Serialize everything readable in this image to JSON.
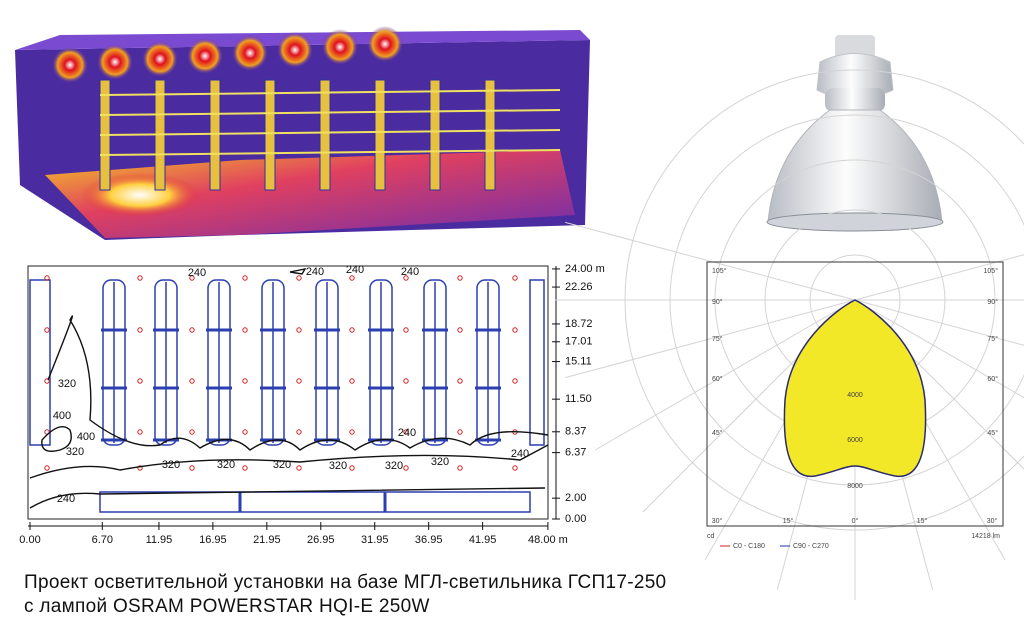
{
  "plan": {
    "x_ticks": [
      "0.00",
      "6.70",
      "11.95",
      "16.95",
      "21.95",
      "26.95",
      "31.95",
      "36.95",
      "41.95",
      "48.00 m"
    ],
    "y_ticks": [
      "24.00 m",
      "22.26",
      "18.72",
      "17.01",
      "15.11",
      "11.50",
      "8.37",
      "6.37",
      "2.00",
      "0.00"
    ],
    "contour_labels": [
      "240",
      "240",
      "240",
      "240",
      "320",
      "400",
      "400",
      "320",
      "320",
      "320",
      "320",
      "320",
      "320",
      "320",
      "240",
      "240",
      "240"
    ]
  },
  "polar": {
    "angle_labels": [
      "105°",
      "90°",
      "75°",
      "60°",
      "45°",
      "30°"
    ],
    "bottom_labels": [
      "30°",
      "15°",
      "0°",
      "15°",
      "30°"
    ],
    "radial_labels": [
      "4000",
      "6000",
      "8000"
    ],
    "unit": "cd",
    "legend": [
      "C0 - C180",
      "C90 - C270"
    ],
    "flux": "14218 lm"
  },
  "caption": {
    "line1": "Проект осветительной установки на базе МГЛ-светильника ГСП17-250",
    "line2": "с лампой OSRAM POWERSTAR HQI-E 250W"
  }
}
